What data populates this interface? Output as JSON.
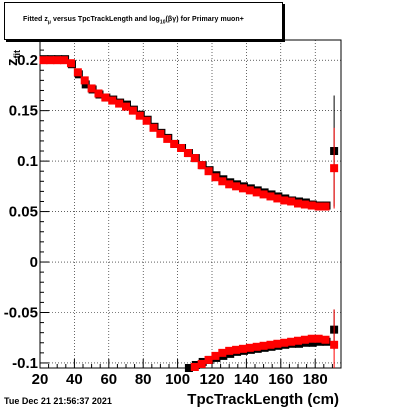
{
  "chart_data": {
    "type": "scatter",
    "title_parts": {
      "a": "Fitted  z",
      "a_sub": "μ",
      "b": "  versus TpcTrackLength and log",
      "b_sub": "10",
      "c": "(βγ) for Primary muon+"
    },
    "xlabel": "TpcTrackLength (cm)",
    "ylabel": "z",
    "ylabel_sub": "fit",
    "xlim": [
      20,
      195
    ],
    "ylim": [
      -0.105,
      0.22
    ],
    "xticks": [
      20,
      40,
      60,
      80,
      100,
      120,
      140,
      160,
      180
    ],
    "yticks": [
      -0.1,
      -0.05,
      0,
      0.05,
      0.1,
      0.15,
      0.2
    ],
    "ytick_labels": [
      "-0.1",
      "-0.05",
      "0",
      "0.05",
      "0.1",
      "0.15",
      "0.2"
    ],
    "grid": true,
    "series": [
      {
        "color": "#000000",
        "marker": "square",
        "upper": {
          "x": [
            22,
            26,
            30,
            34,
            38,
            42,
            46,
            50,
            54,
            58,
            62,
            66,
            70,
            74,
            78,
            82,
            86,
            90,
            94,
            98,
            102,
            106,
            110,
            114,
            118,
            122,
            126,
            130,
            134,
            138,
            142,
            146,
            150,
            154,
            158,
            162,
            166,
            170,
            174,
            178,
            182,
            186
          ],
          "y": [
            0.2,
            0.2,
            0.2,
            0.2,
            0.195,
            0.185,
            0.175,
            0.17,
            0.165,
            0.162,
            0.16,
            0.157,
            0.155,
            0.15,
            0.145,
            0.14,
            0.133,
            0.127,
            0.122,
            0.116,
            0.112,
            0.107,
            0.102,
            0.095,
            0.09,
            0.085,
            0.081,
            0.078,
            0.076,
            0.074,
            0.072,
            0.07,
            0.068,
            0.066,
            0.064,
            0.062,
            0.06,
            0.059,
            0.058,
            0.056,
            0.055,
            0.055
          ]
        },
        "lower": {
          "x": [
            106,
            110,
            114,
            118,
            122,
            126,
            130,
            134,
            138,
            142,
            146,
            150,
            154,
            158,
            162,
            166,
            170,
            174,
            178,
            182,
            186
          ],
          "y": [
            -0.106,
            -0.103,
            -0.1,
            -0.098,
            -0.096,
            -0.094,
            -0.092,
            -0.09,
            -0.089,
            -0.088,
            -0.087,
            -0.086,
            -0.085,
            -0.084,
            -0.083,
            -0.082,
            -0.082,
            -0.081,
            -0.081,
            -0.08,
            -0.08
          ]
        },
        "outliers": [
          {
            "x": 191,
            "y": 0.11,
            "err": 0.055
          },
          {
            "x": 191,
            "y": -0.067,
            "err": 0.02
          }
        ]
      },
      {
        "color": "#ff0000",
        "marker": "square",
        "upper": {
          "x": [
            22,
            26,
            30,
            34,
            38,
            42,
            46,
            50,
            54,
            58,
            62,
            66,
            70,
            74,
            78,
            82,
            86,
            90,
            94,
            98,
            102,
            106,
            110,
            114,
            118,
            122,
            126,
            130,
            134,
            138,
            142,
            146,
            150,
            154,
            158,
            162,
            166,
            170,
            174,
            178,
            182,
            186
          ],
          "y": [
            0.2,
            0.2,
            0.2,
            0.2,
            0.197,
            0.188,
            0.18,
            0.172,
            0.167,
            0.163,
            0.16,
            0.157,
            0.154,
            0.15,
            0.145,
            0.14,
            0.133,
            0.127,
            0.122,
            0.117,
            0.113,
            0.108,
            0.103,
            0.096,
            0.09,
            0.084,
            0.08,
            0.077,
            0.075,
            0.073,
            0.071,
            0.069,
            0.067,
            0.065,
            0.063,
            0.061,
            0.06,
            0.058,
            0.057,
            0.056,
            0.055,
            0.055
          ]
        },
        "lower": {
          "x": [
            106,
            110,
            114,
            118,
            122,
            126,
            130,
            134,
            138,
            142,
            146,
            150,
            154,
            158,
            162,
            166,
            170,
            174,
            178,
            182,
            186
          ],
          "y": [
            -0.107,
            -0.104,
            -0.101,
            -0.097,
            -0.093,
            -0.09,
            -0.088,
            -0.087,
            -0.086,
            -0.085,
            -0.084,
            -0.083,
            -0.082,
            -0.081,
            -0.08,
            -0.079,
            -0.078,
            -0.077,
            -0.076,
            -0.076,
            -0.077
          ]
        },
        "outliers": [
          {
            "x": 191,
            "y": 0.093,
            "err": 0.04
          },
          {
            "x": 191,
            "y": -0.082,
            "err": 0.035
          }
        ]
      }
    ]
  },
  "timestamp": "Tue Dec 21 21:56:37 2021"
}
